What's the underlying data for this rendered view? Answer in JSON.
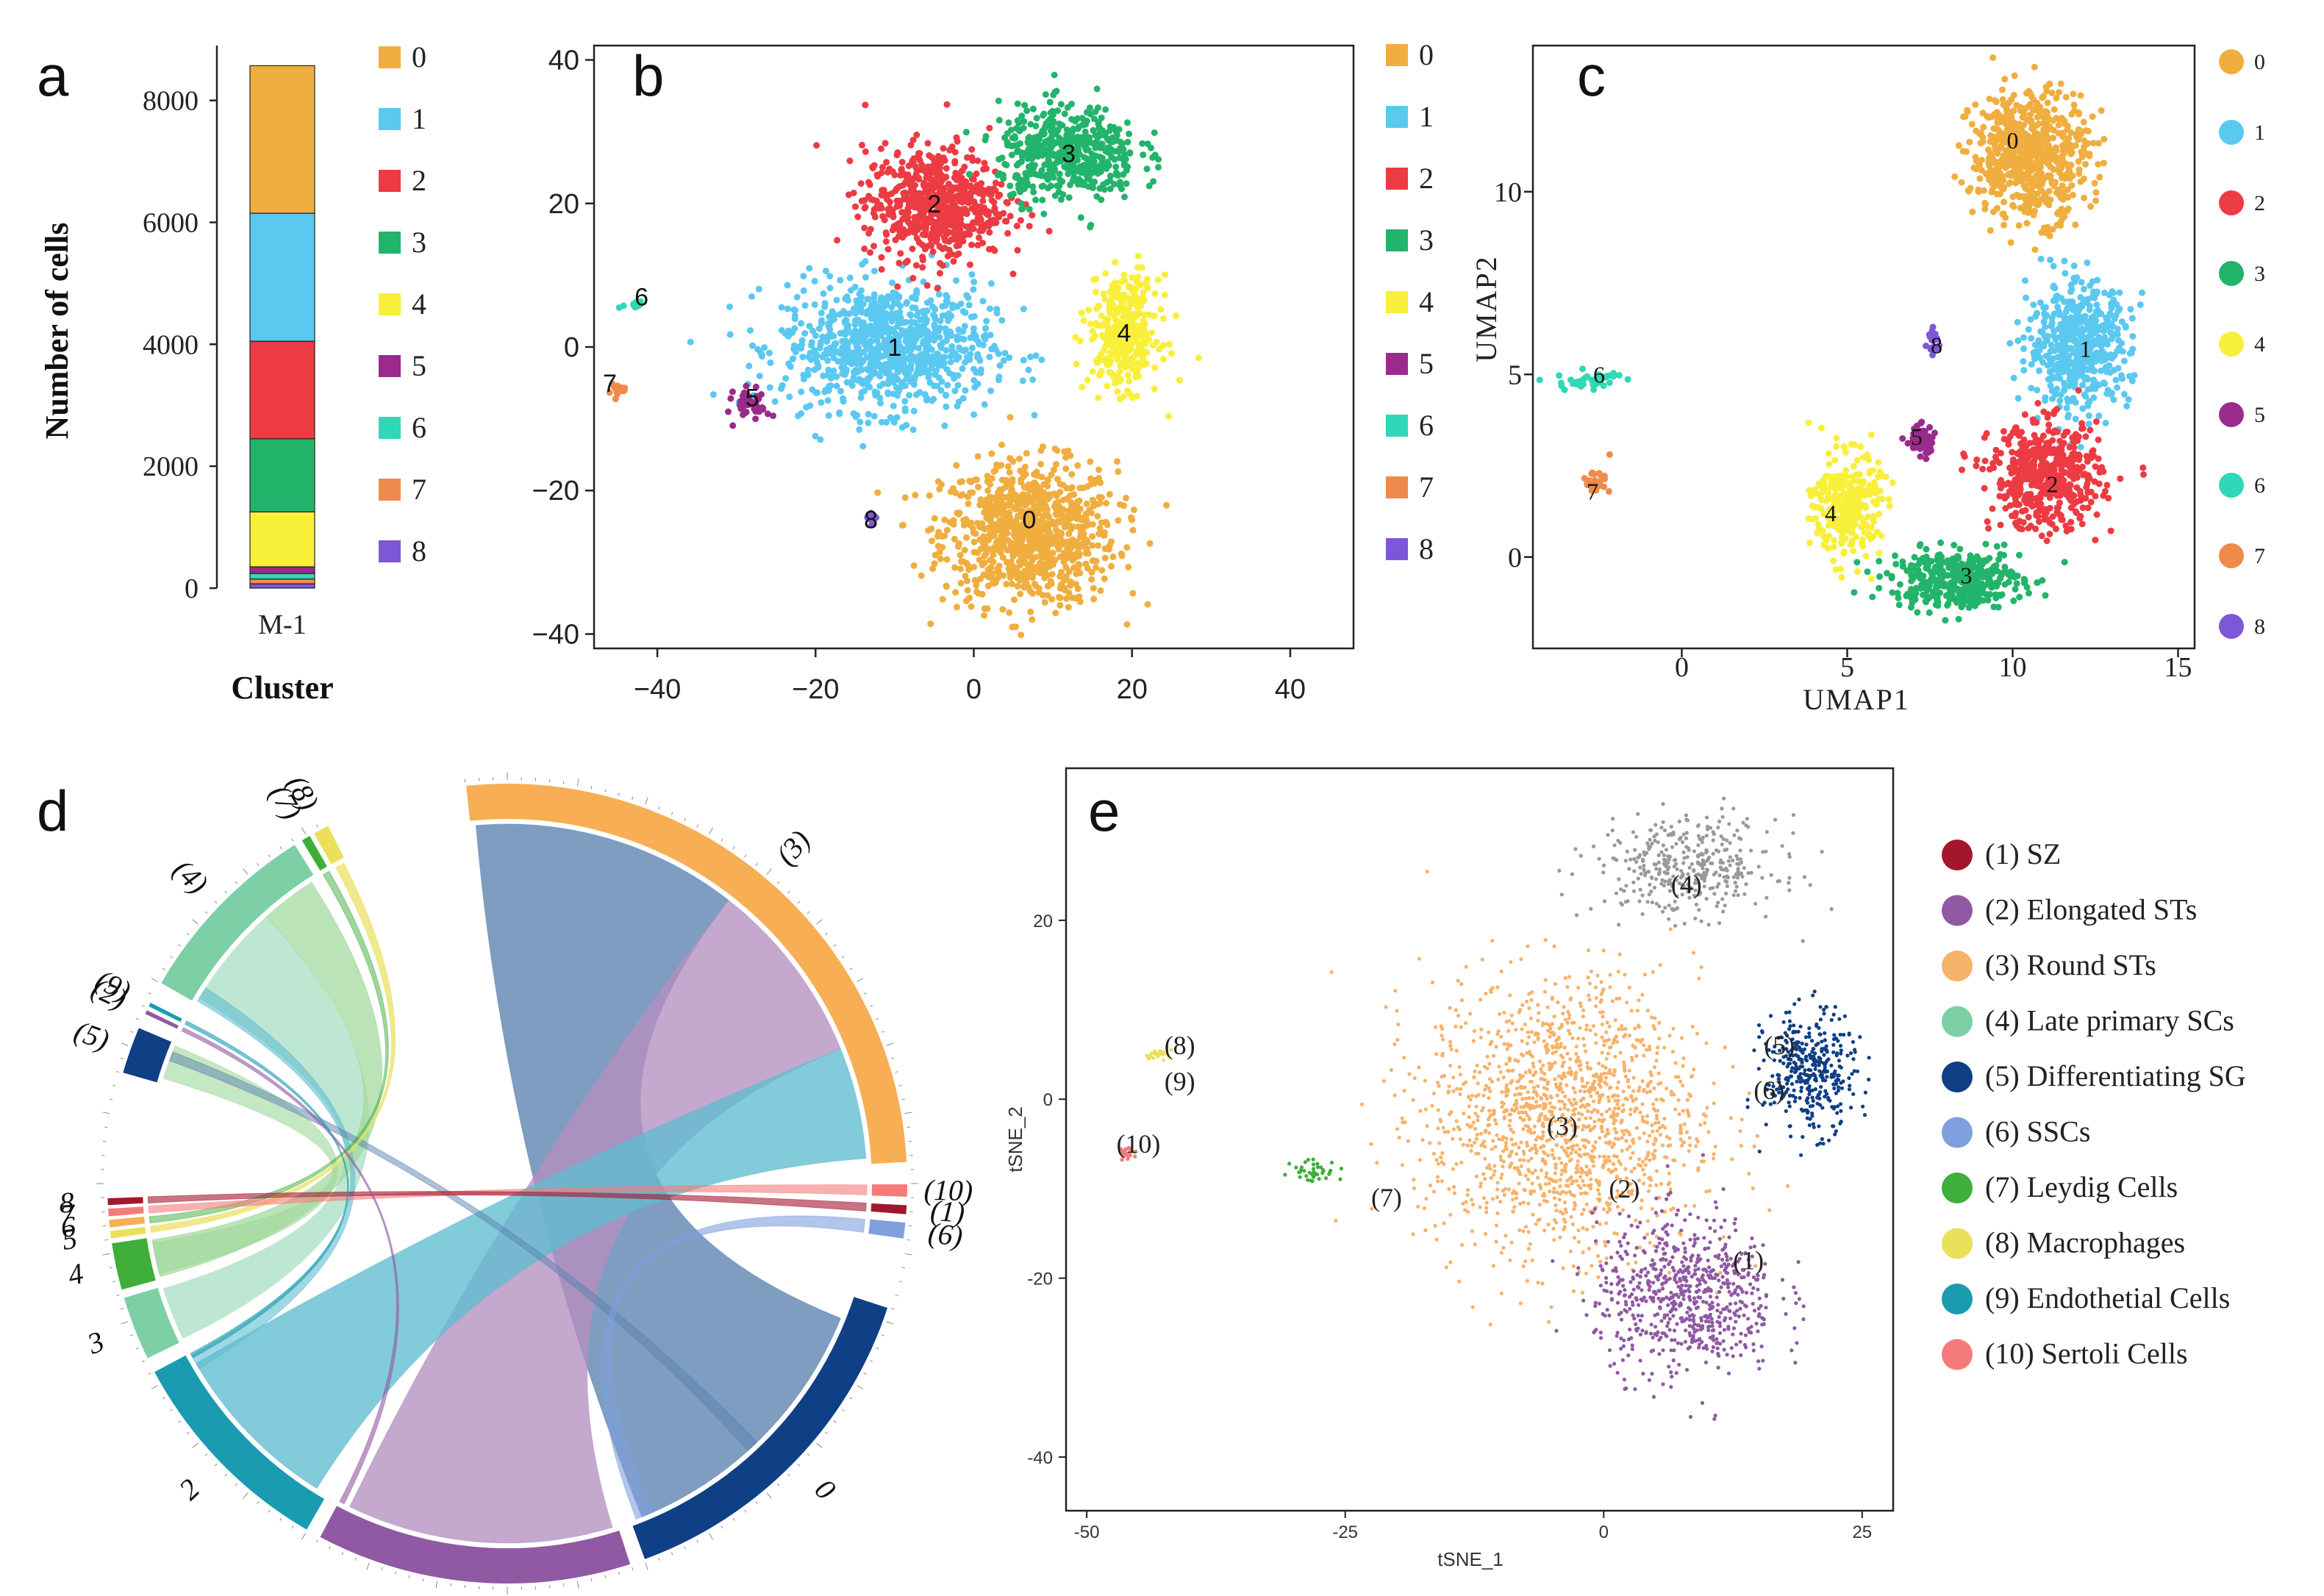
{
  "palette": {
    "0": "#EFAE3F",
    "1": "#5BC8F0",
    "2": "#EC3B43",
    "3": "#23B46B",
    "4": "#F8EF3A",
    "5": "#9A2B8C",
    "6": "#2FD8B6",
    "7": "#F08A4C",
    "8": "#7E57D6"
  },
  "panel_labels": {
    "a": "a",
    "b": "b",
    "c": "c",
    "d": "d",
    "e": "e"
  },
  "chart_data": [
    {
      "panel": "a",
      "type": "bar",
      "stacked": true,
      "categories": [
        "M-1"
      ],
      "series": [
        {
          "name": "0",
          "values": [
            2420
          ]
        },
        {
          "name": "1",
          "values": [
            2100
          ]
        },
        {
          "name": "2",
          "values": [
            1600
          ]
        },
        {
          "name": "3",
          "values": [
            1200
          ]
        },
        {
          "name": "4",
          "values": [
            900
          ]
        },
        {
          "name": "5",
          "values": [
            110
          ]
        },
        {
          "name": "6",
          "values": [
            90
          ]
        },
        {
          "name": "7",
          "values": [
            80
          ]
        },
        {
          "name": "8",
          "values": [
            70
          ]
        }
      ],
      "xlabel": "Cluster",
      "ylabel": "Number of cells",
      "yticks": [
        "0",
        "2000",
        "4000",
        "6000",
        "8000"
      ],
      "ylim": [
        0,
        8900
      ],
      "legend": [
        "0",
        "1",
        "2",
        "3",
        "4",
        "5",
        "6",
        "7",
        "8"
      ]
    },
    {
      "panel": "b",
      "type": "scatter",
      "xlim": [
        -48,
        48
      ],
      "ylim": [
        -42,
        42
      ],
      "xticks": [
        "−40",
        "−20",
        "0",
        "20",
        "40"
      ],
      "yticks": [
        "40",
        "20",
        "0",
        "−20",
        "−40"
      ],
      "clusters": [
        {
          "name": "0",
          "center": [
            7,
            -26
          ],
          "spread": [
            10,
            9
          ],
          "n": 900
        },
        {
          "name": "1",
          "center": [
            -11,
            0
          ],
          "spread": [
            12,
            8
          ],
          "n": 900
        },
        {
          "name": "2",
          "center": [
            -5,
            20
          ],
          "spread": [
            8,
            7
          ],
          "n": 650
        },
        {
          "name": "3",
          "center": [
            12,
            27
          ],
          "spread": [
            8,
            6
          ],
          "n": 500
        },
        {
          "name": "4",
          "center": [
            19,
            2
          ],
          "spread": [
            4,
            7
          ],
          "n": 350
        },
        {
          "name": "5",
          "center": [
            -28,
            -8
          ],
          "spread": [
            2,
            2
          ],
          "n": 45
        },
        {
          "name": "6",
          "center": [
            -43,
            6
          ],
          "spread": [
            1.2,
            0.8
          ],
          "n": 18
        },
        {
          "name": "7",
          "center": [
            -45,
            -6
          ],
          "spread": [
            1.2,
            0.8
          ],
          "n": 18
        },
        {
          "name": "8",
          "center": [
            -13,
            -24
          ],
          "spread": [
            0.6,
            0.6
          ],
          "n": 10
        }
      ],
      "labels": [
        {
          "text": "0",
          "at": [
            7,
            -24
          ]
        },
        {
          "text": "1",
          "at": [
            -10,
            0
          ]
        },
        {
          "text": "2",
          "at": [
            -5,
            20
          ]
        },
        {
          "text": "3",
          "at": [
            12,
            27
          ]
        },
        {
          "text": "4",
          "at": [
            19,
            2
          ]
        },
        {
          "text": "5",
          "at": [
            -28,
            -7
          ]
        },
        {
          "text": "6",
          "at": [
            -42,
            7
          ]
        },
        {
          "text": "7",
          "at": [
            -46,
            -5
          ]
        },
        {
          "text": "8",
          "at": [
            -13,
            -24
          ]
        }
      ],
      "legend": [
        "0",
        "1",
        "2",
        "3",
        "4",
        "5",
        "6",
        "7",
        "8"
      ]
    },
    {
      "panel": "c",
      "type": "scatter",
      "xlim": [
        -4.5,
        15.5
      ],
      "ylim": [
        -2.5,
        14
      ],
      "xlabel": "UMAP1",
      "ylabel": "UMAP2",
      "xticks": [
        "0",
        "5",
        "10",
        "15"
      ],
      "yticks": [
        "10",
        "5",
        "0"
      ],
      "clusters": [
        {
          "name": "0",
          "center": [
            10.5,
            11
          ],
          "spread": [
            1.6,
            1.6
          ],
          "n": 650
        },
        {
          "name": "1",
          "center": [
            12,
            5.8
          ],
          "spread": [
            1.4,
            1.5
          ],
          "n": 550
        },
        {
          "name": "2",
          "center": [
            11,
            2.2
          ],
          "spread": [
            1.5,
            1.3
          ],
          "n": 500
        },
        {
          "name": "3",
          "center": [
            8.3,
            -0.6
          ],
          "spread": [
            1.8,
            0.7
          ],
          "n": 400
        },
        {
          "name": "4",
          "center": [
            5,
            1.4
          ],
          "spread": [
            0.9,
            1.3
          ],
          "n": 300
        },
        {
          "name": "5",
          "center": [
            7.2,
            3.2
          ],
          "spread": [
            0.4,
            0.4
          ],
          "n": 60
        },
        {
          "name": "6",
          "center": [
            -2.8,
            4.8
          ],
          "spread": [
            0.9,
            0.25
          ],
          "n": 40
        },
        {
          "name": "7",
          "center": [
            -2.6,
            2.1
          ],
          "spread": [
            0.4,
            0.3
          ],
          "n": 28
        },
        {
          "name": "8",
          "center": [
            7.6,
            5.9
          ],
          "spread": [
            0.15,
            0.3
          ],
          "n": 20
        }
      ],
      "labels": [
        {
          "text": "0",
          "at": [
            10,
            11.4
          ]
        },
        {
          "text": "1",
          "at": [
            12.2,
            5.7
          ]
        },
        {
          "text": "2",
          "at": [
            11.2,
            2
          ]
        },
        {
          "text": "3",
          "at": [
            8.6,
            -0.5
          ]
        },
        {
          "text": "4",
          "at": [
            4.5,
            1.2
          ]
        },
        {
          "text": "5",
          "at": [
            7.1,
            3.3
          ]
        },
        {
          "text": "6",
          "at": [
            -2.5,
            5
          ]
        },
        {
          "text": "7",
          "at": [
            -2.7,
            1.8
          ]
        },
        {
          "text": "8",
          "at": [
            7.7,
            5.8
          ]
        }
      ],
      "legend": [
        "0",
        "1",
        "2",
        "3",
        "4",
        "5",
        "6",
        "7",
        "8"
      ]
    },
    {
      "panel": "d",
      "type": "chord",
      "groups": [
        "(3)",
        "(10)",
        "(1)",
        "(6)",
        "0",
        "1",
        "2",
        "3",
        "4",
        "5",
        "6",
        "7",
        "8",
        "(5)",
        "(2)",
        "(9)",
        "(4)",
        "(7)",
        "(8)"
      ],
      "note": "Chord diagram linking cell-type annotations (1)–(10) to clusters 0–8"
    },
    {
      "panel": "e",
      "type": "scatter",
      "xlabel": "tSNE_1",
      "ylabel": "tSNE_2",
      "xlim": [
        -52,
        28
      ],
      "ylim": [
        -46,
        37
      ],
      "xticks": [
        "-50",
        "-25",
        "0",
        "25"
      ],
      "yticks": [
        "20",
        "0",
        "-20",
        "-40"
      ],
      "clusters": [
        {
          "name": "(3) Round STs",
          "center": [
            -4,
            -2
          ],
          "spread": [
            12,
            14
          ],
          "n": 1500
        },
        {
          "name": "(2) Elongated STs",
          "center": [
            8,
            -22
          ],
          "spread": [
            8,
            8
          ],
          "n": 700
        },
        {
          "name": "(4) Late primary SCs",
          "center": [
            8,
            26
          ],
          "spread": [
            8,
            5
          ],
          "n": 380
        },
        {
          "name": "(5) Differentiating SG",
          "center": [
            20,
            3
          ],
          "spread": [
            4,
            6
          ],
          "n": 380
        },
        {
          "name": "(7) Leydig Cells",
          "center": [
            -28,
            -8
          ],
          "spread": [
            2,
            1.2
          ],
          "n": 40
        },
        {
          "name": "(10) Sertoli Cells",
          "center": [
            -46,
            -6
          ],
          "spread": [
            0.8,
            0.6
          ],
          "n": 30
        },
        {
          "name": "(8) Macrophages",
          "center": [
            -43,
            5
          ],
          "spread": [
            1.2,
            0.5
          ],
          "n": 20
        }
      ],
      "labels": [
        {
          "text": "(1)",
          "at": [
            14,
            -18
          ]
        },
        {
          "text": "(2)",
          "at": [
            2,
            -10
          ]
        },
        {
          "text": "(3)",
          "at": [
            -4,
            -3
          ]
        },
        {
          "text": "(4)",
          "at": [
            8,
            24
          ]
        },
        {
          "text": "(5)",
          "at": [
            17,
            6
          ]
        },
        {
          "text": "(6)",
          "at": [
            16,
            1
          ]
        },
        {
          "text": "(7)",
          "at": [
            -21,
            -11
          ]
        },
        {
          "text": "(8)",
          "at": [
            -41,
            6
          ]
        },
        {
          "text": "(9)",
          "at": [
            -41,
            2
          ]
        },
        {
          "text": "(10)",
          "at": [
            -45,
            -5
          ]
        }
      ],
      "legend": [
        {
          "label": "(1) SZ",
          "color": "#A3172E"
        },
        {
          "label": "(2) Elongated STs",
          "color": "#9059A3"
        },
        {
          "label": "(3) Round STs",
          "color": "#F7B26A"
        },
        {
          "label": "(4) Late primary  SCs",
          "color": "#7DCFA6"
        },
        {
          "label": "(5) Differentiating SG",
          "color": "#0E3F85"
        },
        {
          "label": "(6) SSCs",
          "color": "#7F9FDD"
        },
        {
          "label": "(7) Leydig Cells",
          "color": "#3FAE3A"
        },
        {
          "label": "(8) Macrophages",
          "color": "#EAE05A"
        },
        {
          "label": "(9) Endothetial Cells",
          "color": "#1A9BB0"
        },
        {
          "label": "(10) Sertoli Cells",
          "color": "#F57B7B"
        }
      ]
    }
  ]
}
